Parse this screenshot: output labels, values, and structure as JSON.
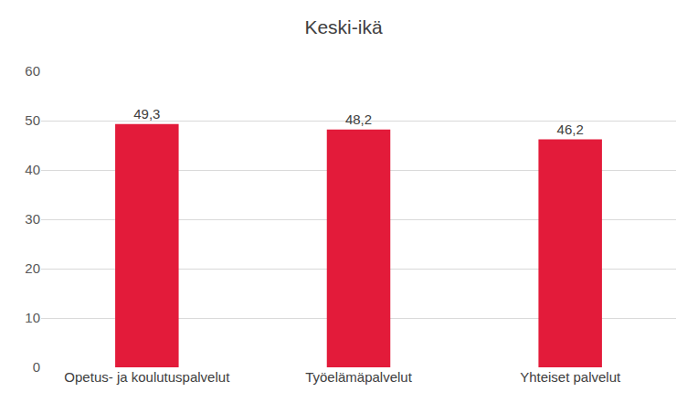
{
  "chart_data": {
    "type": "bar",
    "title": "Keski-ikä",
    "categories": [
      "Opetus- ja koulutuspalvelut",
      "Työelämäpalvelut",
      "Yhteiset palvelut"
    ],
    "values": [
      49.3,
      48.2,
      46.2
    ],
    "value_labels": [
      "49,3",
      "48,2",
      "46,2"
    ],
    "data_labels": true,
    "color": "#e31b3a",
    "ylim": [
      0,
      60
    ],
    "yticks": [
      0,
      10,
      20,
      30,
      40,
      50,
      60
    ],
    "grid": true
  }
}
